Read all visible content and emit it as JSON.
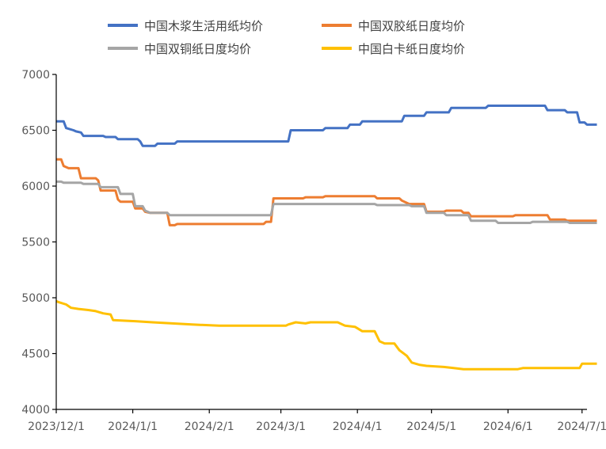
{
  "chart_data": {
    "type": "line",
    "title": "",
    "xlabel": "",
    "ylabel": "",
    "ylim": [
      4000,
      7000
    ],
    "yticks": [
      4000,
      4500,
      5000,
      5500,
      6000,
      6500,
      7000
    ],
    "xlim": [
      "2023-12-01",
      "2024-07-03"
    ],
    "xticks": [
      {
        "date": "2023-12-01",
        "label": "2023/12/1"
      },
      {
        "date": "2024-01-01",
        "label": "2024/1/1"
      },
      {
        "date": "2024-02-01",
        "label": "2024/2/1"
      },
      {
        "date": "2024-03-01",
        "label": "2024/3/1"
      },
      {
        "date": "2024-04-01",
        "label": "2024/4/1"
      },
      {
        "date": "2024-05-01",
        "label": "2024/5/1"
      },
      {
        "date": "2024-06-01",
        "label": "2024/6/1"
      },
      {
        "date": "2024-07-01",
        "label": "2024/7/1"
      }
    ],
    "grid": false,
    "legend_position": "top",
    "series": [
      {
        "name": "中国木浆生活用纸均价",
        "color": "#4472C4",
        "points": [
          [
            "2023-12-01",
            6580
          ],
          [
            "2023-12-04",
            6580
          ],
          [
            "2023-12-05",
            6520
          ],
          [
            "2023-12-08",
            6500
          ],
          [
            "2023-12-09",
            6490
          ],
          [
            "2023-12-11",
            6480
          ],
          [
            "2023-12-12",
            6450
          ],
          [
            "2023-12-20",
            6450
          ],
          [
            "2023-12-21",
            6440
          ],
          [
            "2023-12-25",
            6440
          ],
          [
            "2023-12-26",
            6420
          ],
          [
            "2024-01-03",
            6420
          ],
          [
            "2024-01-04",
            6400
          ],
          [
            "2024-01-05",
            6360
          ],
          [
            "2024-01-10",
            6360
          ],
          [
            "2024-01-11",
            6380
          ],
          [
            "2024-01-18",
            6380
          ],
          [
            "2024-01-19",
            6400
          ],
          [
            "2024-02-29",
            6400
          ],
          [
            "2024-03-04",
            6400
          ],
          [
            "2024-03-05",
            6500
          ],
          [
            "2024-03-18",
            6500
          ],
          [
            "2024-03-19",
            6520
          ],
          [
            "2024-03-28",
            6520
          ],
          [
            "2024-03-29",
            6550
          ],
          [
            "2024-04-02",
            6550
          ],
          [
            "2024-04-03",
            6580
          ],
          [
            "2024-04-19",
            6580
          ],
          [
            "2024-04-20",
            6630
          ],
          [
            "2024-04-28",
            6630
          ],
          [
            "2024-04-29",
            6660
          ],
          [
            "2024-05-08",
            6660
          ],
          [
            "2024-05-09",
            6700
          ],
          [
            "2024-05-23",
            6700
          ],
          [
            "2024-05-24",
            6720
          ],
          [
            "2024-06-16",
            6720
          ],
          [
            "2024-06-17",
            6680
          ],
          [
            "2024-06-24",
            6680
          ],
          [
            "2024-06-25",
            6660
          ],
          [
            "2024-06-29",
            6660
          ],
          [
            "2024-06-30",
            6570
          ],
          [
            "2024-07-02",
            6570
          ],
          [
            "2024-07-03",
            6550
          ],
          [
            "2024-07-07",
            6550
          ]
        ]
      },
      {
        "name": "中国双胶纸日度均价",
        "color": "#ED7D31",
        "points": [
          [
            "2023-12-01",
            6240
          ],
          [
            "2023-12-03",
            6240
          ],
          [
            "2023-12-04",
            6180
          ],
          [
            "2023-12-06",
            6160
          ],
          [
            "2023-12-10",
            6160
          ],
          [
            "2023-12-11",
            6070
          ],
          [
            "2023-12-17",
            6070
          ],
          [
            "2023-12-18",
            6050
          ],
          [
            "2023-12-19",
            5960
          ],
          [
            "2023-12-25",
            5960
          ],
          [
            "2023-12-26",
            5880
          ],
          [
            "2023-12-27",
            5860
          ],
          [
            "2024-01-01",
            5860
          ],
          [
            "2024-01-02",
            5800
          ],
          [
            "2024-01-05",
            5800
          ],
          [
            "2024-01-06",
            5770
          ],
          [
            "2024-01-08",
            5760
          ],
          [
            "2024-01-15",
            5760
          ],
          [
            "2024-01-16",
            5650
          ],
          [
            "2024-01-18",
            5650
          ],
          [
            "2024-01-19",
            5660
          ],
          [
            "2024-02-23",
            5660
          ],
          [
            "2024-02-24",
            5680
          ],
          [
            "2024-02-26",
            5680
          ],
          [
            "2024-02-27",
            5890
          ],
          [
            "2024-03-10",
            5890
          ],
          [
            "2024-03-11",
            5900
          ],
          [
            "2024-03-18",
            5900
          ],
          [
            "2024-03-19",
            5910
          ],
          [
            "2024-04-08",
            5910
          ],
          [
            "2024-04-09",
            5890
          ],
          [
            "2024-04-18",
            5890
          ],
          [
            "2024-04-19",
            5870
          ],
          [
            "2024-04-22",
            5840
          ],
          [
            "2024-04-28",
            5840
          ],
          [
            "2024-04-29",
            5770
          ],
          [
            "2024-05-06",
            5770
          ],
          [
            "2024-05-07",
            5780
          ],
          [
            "2024-05-13",
            5780
          ],
          [
            "2024-05-14",
            5760
          ],
          [
            "2024-05-16",
            5760
          ],
          [
            "2024-05-17",
            5730
          ],
          [
            "2024-06-03",
            5730
          ],
          [
            "2024-06-04",
            5740
          ],
          [
            "2024-06-17",
            5740
          ],
          [
            "2024-06-18",
            5700
          ],
          [
            "2024-06-24",
            5700
          ],
          [
            "2024-06-25",
            5690
          ],
          [
            "2024-07-07",
            5690
          ]
        ]
      },
      {
        "name": "中国双铜纸日度均价",
        "color": "#A5A5A5",
        "points": [
          [
            "2023-12-01",
            6040
          ],
          [
            "2023-12-03",
            6040
          ],
          [
            "2023-12-04",
            6030
          ],
          [
            "2023-12-11",
            6030
          ],
          [
            "2023-12-12",
            6020
          ],
          [
            "2023-12-18",
            6020
          ],
          [
            "2023-12-19",
            5990
          ],
          [
            "2023-12-26",
            5990
          ],
          [
            "2023-12-27",
            5930
          ],
          [
            "2024-01-01",
            5930
          ],
          [
            "2024-01-02",
            5820
          ],
          [
            "2024-01-05",
            5820
          ],
          [
            "2024-01-06",
            5780
          ],
          [
            "2024-01-08",
            5760
          ],
          [
            "2024-01-15",
            5760
          ],
          [
            "2024-01-16",
            5740
          ],
          [
            "2024-02-26",
            5740
          ],
          [
            "2024-02-27",
            5840
          ],
          [
            "2024-04-08",
            5840
          ],
          [
            "2024-04-09",
            5830
          ],
          [
            "2024-04-22",
            5830
          ],
          [
            "2024-04-23",
            5820
          ],
          [
            "2024-04-28",
            5820
          ],
          [
            "2024-04-29",
            5760
          ],
          [
            "2024-05-06",
            5760
          ],
          [
            "2024-05-07",
            5740
          ],
          [
            "2024-05-16",
            5740
          ],
          [
            "2024-05-17",
            5690
          ],
          [
            "2024-05-27",
            5690
          ],
          [
            "2024-05-28",
            5670
          ],
          [
            "2024-06-10",
            5670
          ],
          [
            "2024-06-11",
            5680
          ],
          [
            "2024-06-25",
            5680
          ],
          [
            "2024-06-26",
            5670
          ],
          [
            "2024-07-07",
            5670
          ]
        ]
      },
      {
        "name": "中国白卡纸日度均价",
        "color": "#FFC000",
        "points": [
          [
            "2023-12-01",
            4970
          ],
          [
            "2023-12-02",
            4960
          ],
          [
            "2023-12-05",
            4940
          ],
          [
            "2023-12-07",
            4910
          ],
          [
            "2023-12-10",
            4900
          ],
          [
            "2023-12-14",
            4890
          ],
          [
            "2023-12-17",
            4880
          ],
          [
            "2023-12-20",
            4860
          ],
          [
            "2023-12-23",
            4850
          ],
          [
            "2023-12-24",
            4800
          ],
          [
            "2024-01-02",
            4790
          ],
          [
            "2024-01-09",
            4780
          ],
          [
            "2024-01-17",
            4770
          ],
          [
            "2024-01-25",
            4760
          ],
          [
            "2024-02-05",
            4750
          ],
          [
            "2024-03-03",
            4750
          ],
          [
            "2024-03-04",
            4760
          ],
          [
            "2024-03-07",
            4780
          ],
          [
            "2024-03-11",
            4770
          ],
          [
            "2024-03-13",
            4780
          ],
          [
            "2024-03-24",
            4780
          ],
          [
            "2024-03-27",
            4750
          ],
          [
            "2024-03-31",
            4740
          ],
          [
            "2024-04-03",
            4700
          ],
          [
            "2024-04-08",
            4700
          ],
          [
            "2024-04-10",
            4610
          ],
          [
            "2024-04-12",
            4590
          ],
          [
            "2024-04-16",
            4590
          ],
          [
            "2024-04-18",
            4530
          ],
          [
            "2024-04-21",
            4480
          ],
          [
            "2024-04-23",
            4420
          ],
          [
            "2024-04-26",
            4400
          ],
          [
            "2024-04-29",
            4390
          ],
          [
            "2024-05-06",
            4380
          ],
          [
            "2024-05-10",
            4370
          ],
          [
            "2024-05-14",
            4360
          ],
          [
            "2024-06-05",
            4360
          ],
          [
            "2024-06-07",
            4370
          ],
          [
            "2024-06-30",
            4370
          ],
          [
            "2024-07-01",
            4410
          ],
          [
            "2024-07-07",
            4410
          ]
        ]
      }
    ]
  }
}
